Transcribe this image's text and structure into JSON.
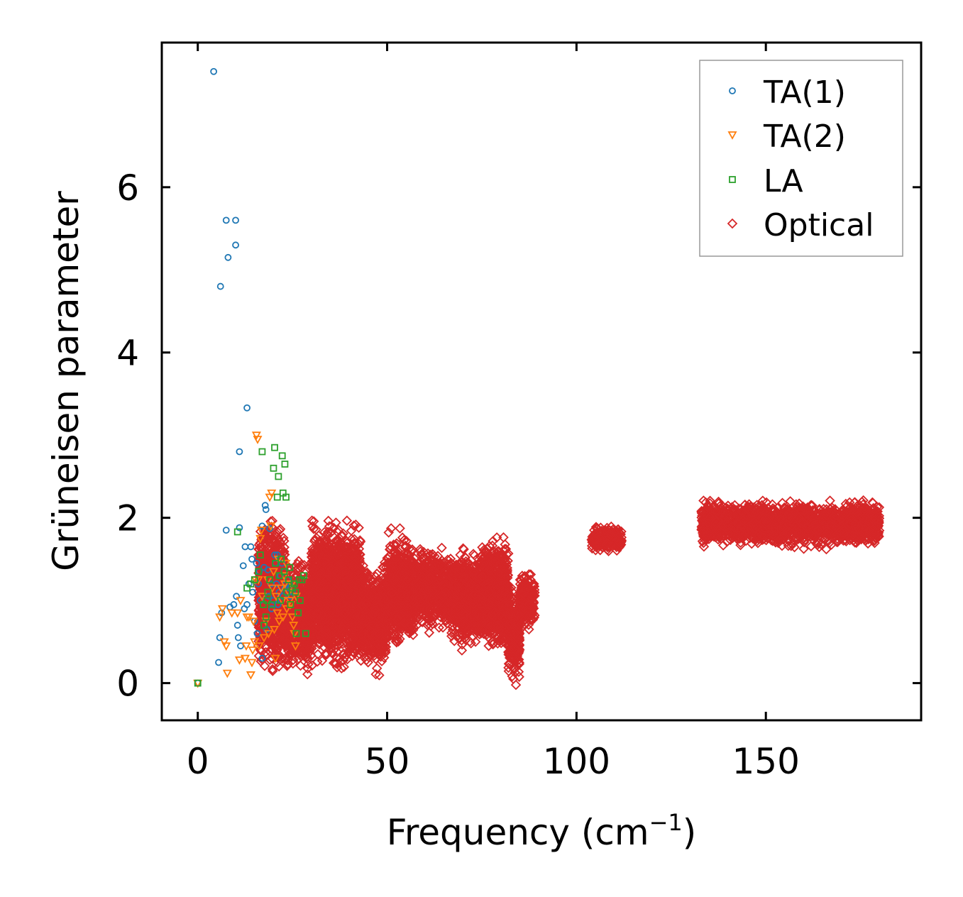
{
  "chart_data": {
    "type": "scatter",
    "xlabel": "Frequency (cm",
    "xlabel_sup": "−1",
    "xlabel_end": ")",
    "ylabel": "Grüneisen parameter",
    "xlim": [
      -9.5,
      191
    ],
    "ylim": [
      -0.45,
      7.75
    ],
    "xticks": [
      0,
      50,
      100,
      150
    ],
    "yticks": [
      0,
      2,
      4,
      6
    ],
    "legend_position": "top-right",
    "series": [
      {
        "name": "TA(1)",
        "marker": "circle",
        "color": "#1f77b4",
        "points": [
          [
            0,
            0
          ],
          [
            4.2,
            7.4
          ],
          [
            5.5,
            0.25
          ],
          [
            5.8,
            0.55
          ],
          [
            6,
            4.8
          ],
          [
            6.3,
            0.85
          ],
          [
            7.5,
            5.6
          ],
          [
            7.5,
            1.85
          ],
          [
            8,
            5.15
          ],
          [
            8.5,
            0.92
          ],
          [
            9.5,
            0.95
          ],
          [
            10,
            5.6
          ],
          [
            10,
            5.3
          ],
          [
            10.2,
            1.05
          ],
          [
            10.5,
            0.7
          ],
          [
            10.7,
            0.55
          ],
          [
            11,
            1.88
          ],
          [
            11,
            2.8
          ],
          [
            11.3,
            0.45
          ],
          [
            12,
            1.42
          ],
          [
            12.3,
            0.9
          ],
          [
            12.5,
            1.65
          ],
          [
            13,
            3.33
          ],
          [
            13,
            0.95
          ],
          [
            13.5,
            1.2
          ],
          [
            14,
            1.65
          ],
          [
            14.3,
            1.5
          ],
          [
            14.5,
            1.1
          ],
          [
            15,
            0.75
          ],
          [
            15.5,
            1.45
          ],
          [
            15.7,
            0.6
          ],
          [
            16,
            1.2
          ],
          [
            16.2,
            1.35
          ],
          [
            16.5,
            1.0
          ],
          [
            17,
            1.9
          ],
          [
            17,
            0.3
          ],
          [
            17.5,
            1.4
          ],
          [
            17.8,
            2.15
          ],
          [
            18,
            2.1
          ],
          [
            18.2,
            0.65
          ],
          [
            18.5,
            1.37
          ],
          [
            18.7,
            1.05
          ],
          [
            19,
            1.87
          ],
          [
            19.3,
            1.2
          ],
          [
            19.5,
            0.9
          ],
          [
            20,
            1.0
          ],
          [
            20.3,
            1.55
          ],
          [
            20.5,
            1.45
          ],
          [
            20.8,
            1.2
          ],
          [
            21,
            1.55
          ],
          [
            21.2,
            0.95
          ],
          [
            21.5,
            1.1
          ],
          [
            21.8,
            1.3
          ],
          [
            22,
            1.0
          ],
          [
            22.2,
            1.45
          ],
          [
            22.5,
            1.05
          ],
          [
            22.8,
            1.35
          ],
          [
            23,
            1.15
          ],
          [
            23.3,
            1.2
          ],
          [
            23.5,
            1.1
          ],
          [
            23.8,
            1.25
          ],
          [
            24,
            1.15
          ],
          [
            24.2,
            1.2
          ],
          [
            24.5,
            1.05
          ],
          [
            25,
            1.1
          ]
        ]
      },
      {
        "name": "TA(2)",
        "marker": "triangle-down",
        "color": "#ff7f0e",
        "points": [
          [
            0,
            0
          ],
          [
            5.8,
            0.8
          ],
          [
            6.5,
            0.9
          ],
          [
            7,
            0.5
          ],
          [
            7.5,
            0.45
          ],
          [
            7.8,
            0.12
          ],
          [
            9,
            0.85
          ],
          [
            10.5,
            0.85
          ],
          [
            11,
            0.28
          ],
          [
            11.3,
            1.0
          ],
          [
            12.5,
            0.3
          ],
          [
            12.8,
            0.45
          ],
          [
            13,
            0.8
          ],
          [
            13.5,
            0.8
          ],
          [
            14,
            0.1
          ],
          [
            14.3,
            0.25
          ],
          [
            14.5,
            0.4
          ],
          [
            14.7,
            0.75
          ],
          [
            15,
            0.5
          ],
          [
            15.3,
            1.25
          ],
          [
            15.5,
            3.0
          ],
          [
            15.8,
            2.95
          ],
          [
            16,
            1.25
          ],
          [
            16.2,
            0.45
          ],
          [
            16.5,
            1.75
          ],
          [
            16.8,
            1.85
          ],
          [
            17,
            1.05
          ],
          [
            17.5,
            0.55
          ],
          [
            18,
            0.75
          ],
          [
            18.5,
            1.25
          ],
          [
            18.7,
            0.6
          ],
          [
            19,
            2.25
          ],
          [
            19.3,
            1.9
          ],
          [
            19.5,
            2.3
          ],
          [
            19.7,
            1.15
          ],
          [
            20,
            1.35
          ],
          [
            20.2,
            0.65
          ],
          [
            20.5,
            0.3
          ],
          [
            20.7,
            1.05
          ],
          [
            21,
            0.85
          ],
          [
            21.3,
            1.5
          ],
          [
            21.5,
            0.75
          ],
          [
            22,
            1.15
          ],
          [
            22.3,
            1.0
          ],
          [
            22.5,
            0.8
          ],
          [
            22.8,
            1.3
          ],
          [
            23,
            1.2
          ],
          [
            23.3,
            1.45
          ],
          [
            23.5,
            0.9
          ],
          [
            24,
            1.1
          ],
          [
            24.3,
            1.0
          ],
          [
            24.5,
            0.95
          ],
          [
            24.8,
            1.2
          ],
          [
            25,
            0.8
          ],
          [
            25.3,
            0.7
          ],
          [
            25.5,
            0.6
          ],
          [
            25.8,
            0.45
          ],
          [
            26,
            1.05
          ]
        ]
      },
      {
        "name": "LA",
        "marker": "square",
        "color": "#2ca02c",
        "points": [
          [
            0,
            0
          ],
          [
            10.5,
            1.83
          ],
          [
            13,
            1.15
          ],
          [
            14,
            1.2
          ],
          [
            15,
            1.25
          ],
          [
            16,
            1.35
          ],
          [
            16.5,
            1.55
          ],
          [
            17,
            2.8
          ],
          [
            17.3,
            0.95
          ],
          [
            17.5,
            0.7
          ],
          [
            18,
            0.8
          ],
          [
            18.3,
            1.0
          ],
          [
            18.5,
            1.1
          ],
          [
            19,
            1.25
          ],
          [
            19.5,
            0.95
          ],
          [
            20,
            2.6
          ],
          [
            20.3,
            2.85
          ],
          [
            20.5,
            1.45
          ],
          [
            21,
            2.25
          ],
          [
            21.3,
            2.5
          ],
          [
            21.5,
            1.3
          ],
          [
            22,
            1.5
          ],
          [
            22.3,
            2.75
          ],
          [
            22.5,
            2.3
          ],
          [
            23,
            2.65
          ],
          [
            23.3,
            2.25
          ],
          [
            23.5,
            1.1
          ],
          [
            24,
            1.25
          ],
          [
            24.5,
            0.95
          ],
          [
            25,
            1.15
          ],
          [
            25.5,
            1.2
          ],
          [
            26,
            0.6
          ],
          [
            26.5,
            0.85
          ],
          [
            27,
            1.0
          ],
          [
            27.5,
            1.25
          ],
          [
            28,
            1.3
          ],
          [
            28.5,
            0.6
          ],
          [
            21.8,
            1.0
          ],
          [
            22.8,
            1.35
          ],
          [
            24.3,
            1.4
          ],
          [
            25.8,
            1.1
          ],
          [
            26.8,
            1.25
          ]
        ]
      },
      {
        "name": "Optical",
        "marker": "diamond",
        "color": "#d62728",
        "clusters": [
          {
            "x": [
              16,
              23
            ],
            "y": [
              0.0,
              2.1
            ]
          },
          {
            "x": [
              23,
              30
            ],
            "y": [
              0.0,
              1.6
            ]
          },
          {
            "x": [
              30,
              43
            ],
            "y": [
              0.05,
              2.1
            ]
          },
          {
            "x": [
              43,
              50
            ],
            "y": [
              0.05,
              1.55
            ]
          },
          {
            "x": [
              50,
              57
            ],
            "y": [
              0.35,
              1.9
            ]
          },
          {
            "x": [
              57,
              67
            ],
            "y": [
              0.55,
              1.7
            ]
          },
          {
            "x": [
              67,
              75
            ],
            "y": [
              0.35,
              1.7
            ]
          },
          {
            "x": [
              75,
              82
            ],
            "y": [
              0.3,
              1.9
            ]
          },
          {
            "x": [
              82,
              85
            ],
            "y": [
              -0.1,
              1.3
            ]
          },
          {
            "x": [
              85,
              89
            ],
            "y": [
              0.6,
              1.4
            ]
          },
          {
            "x": [
              104,
              112
            ],
            "y": [
              1.55,
              1.95
            ]
          },
          {
            "x": [
              133,
              180
            ],
            "y": [
              1.6,
              2.25
            ]
          }
        ]
      }
    ]
  }
}
